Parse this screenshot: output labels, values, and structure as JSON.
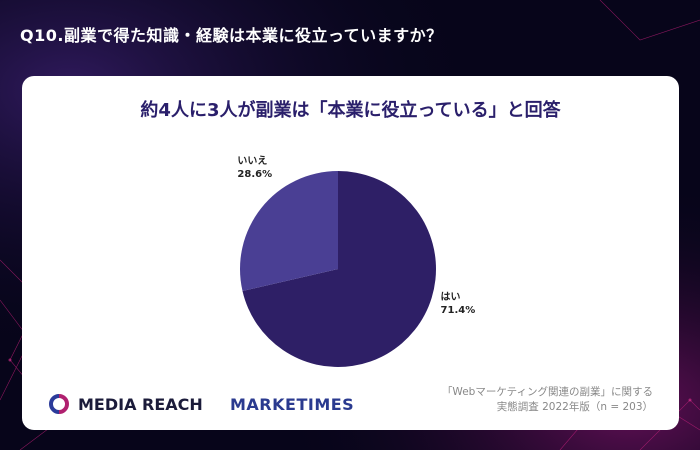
{
  "question": "Q10.副業で得た知識・経験は本業に役立っていますか？",
  "headline": "約4人に3人が副業は「本業に役立っている」と回答",
  "chart_data": {
    "type": "pie",
    "slices": [
      {
        "label": "はい",
        "value": 71.4,
        "value_label": "71.4%",
        "color": "#2e1f66"
      },
      {
        "label": "いいえ",
        "value": 28.6,
        "value_label": "28.6%",
        "color": "#4a3f94"
      }
    ]
  },
  "logos": {
    "media_reach": "MEDIA REACH",
    "marketimes": "MARKETIMES"
  },
  "source": {
    "line1": "「Webマーケティング関連の副業」に関する",
    "line2": "実態調査 2022年版（n = 203）"
  }
}
